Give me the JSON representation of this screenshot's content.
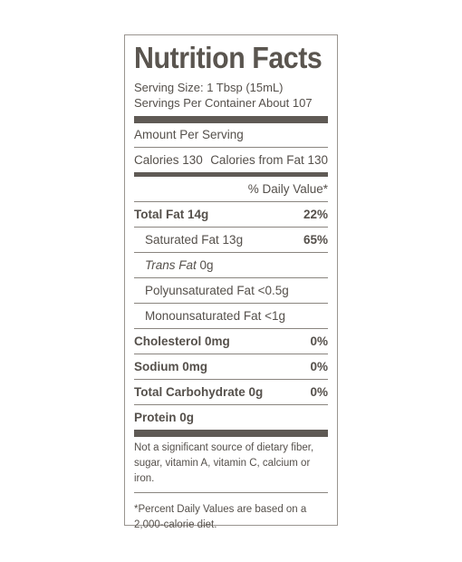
{
  "label": {
    "title": "Nutrition Facts",
    "serving_size": "Serving Size: 1 Tbsp (15mL)",
    "servings_per_container": "Servings Per Container About 107",
    "amount_per_serving": "Amount Per Serving",
    "calories": "Calories 130",
    "calories_from_fat": "Calories from Fat 130",
    "daily_value_header": "% Daily Value*",
    "nutrients": [
      {
        "name": "Total Fat 14g",
        "dv": "22%"
      },
      {
        "name": "Saturated Fat 13g",
        "dv": "65%"
      },
      {
        "name": "Trans Fat",
        "amount": " 0g"
      },
      {
        "name": "Polyunsaturated Fat <0.5g"
      },
      {
        "name": "Monounsaturated Fat <1g"
      },
      {
        "name": "Cholesterol 0mg",
        "dv": "0%"
      },
      {
        "name": "Sodium 0mg",
        "dv": "0%"
      },
      {
        "name": "Total Carbohydrate 0g",
        "dv": "0%"
      },
      {
        "name": "Protein 0g"
      }
    ],
    "footnote_1": "Not a significant source of dietary fiber, sugar, vitamin A, vitamin C, calcium or iron.",
    "footnote_2": "*Percent Daily Values are based on a 2,000-calorie diet."
  }
}
